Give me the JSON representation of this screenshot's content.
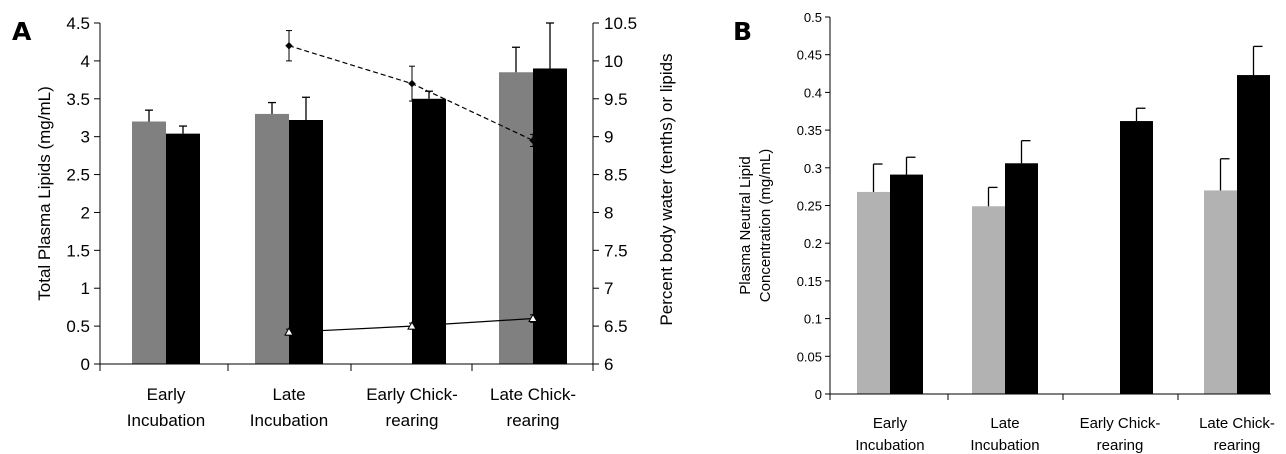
{
  "panel_labels": [
    "A",
    "B"
  ],
  "chart_data": [
    {
      "type": "bar",
      "panel": "A",
      "ylabel": "Total Plasma Lipids (mg/mL)",
      "y2label": "Percent body water (tenths) or lipids",
      "ylim": [
        0,
        4.5
      ],
      "y2lim": [
        6,
        10.5
      ],
      "yticks": [
        "0",
        "0.5",
        "1",
        "1.5",
        "2",
        "2.5",
        "3",
        "3.5",
        "4",
        "4.5"
      ],
      "y2ticks": [
        "6",
        "6.5",
        "7",
        "7.5",
        "8",
        "8.5",
        "9",
        "9.5",
        "10",
        "10.5"
      ],
      "categories": [
        [
          "Early",
          "Incubation"
        ],
        [
          "Late",
          "Incubation"
        ],
        [
          "Early Chick-",
          "rearing"
        ],
        [
          "Late Chick-",
          "rearing"
        ]
      ],
      "colors": {
        "grey": "#808080",
        "black": "#000000"
      },
      "series": [
        {
          "color": "grey",
          "values": [
            3.2,
            3.3,
            null,
            3.85
          ],
          "errors": [
            0.15,
            0.15,
            null,
            0.33
          ]
        },
        {
          "color": "black",
          "values": [
            3.04,
            3.22,
            3.5,
            3.9
          ],
          "errors": [
            0.1,
            0.3,
            0.1,
            0.6
          ]
        }
      ],
      "lines": [
        {
          "axis": "secondary",
          "style": "dashed",
          "marker": "diamond",
          "x_categories": [
            1,
            2,
            3
          ],
          "values": [
            10.2,
            9.7,
            8.95
          ],
          "errors": [
            0.2,
            0.23,
            0.08
          ]
        },
        {
          "axis": "secondary",
          "style": "solid",
          "marker": "triangle",
          "x_categories": [
            1,
            2,
            3
          ],
          "values": [
            6.42,
            6.5,
            6.6
          ],
          "errors": [
            0.04,
            0.04,
            0.05
          ]
        }
      ],
      "grid": false
    },
    {
      "type": "bar",
      "panel": "B",
      "ylabel": "Plasma Neutral Lipid Concentration (mg/mL)",
      "ylabel_lines": [
        "Plasma Neutral Lipid",
        "Concentration (mg/mL)"
      ],
      "ylim": [
        0,
        0.5
      ],
      "yticks": [
        "0",
        "0.05",
        "0.1",
        "0.15",
        "0.2",
        "0.25",
        "0.3",
        "0.35",
        "0.4",
        "0.45",
        "0.5"
      ],
      "categories": [
        [
          "Early",
          "Incubation"
        ],
        [
          "Late",
          "Incubation"
        ],
        [
          "Early Chick-",
          "rearing"
        ],
        [
          "Late Chick-",
          "rearing"
        ]
      ],
      "colors": {
        "grey": "#b2b2b2",
        "black": "#000000"
      },
      "series": [
        {
          "color": "grey",
          "values": [
            0.268,
            0.249,
            null,
            0.27
          ],
          "errors": [
            0.037,
            0.025,
            null,
            0.042
          ]
        },
        {
          "color": "black",
          "values": [
            0.291,
            0.306,
            0.362,
            0.423
          ],
          "errors": [
            0.023,
            0.03,
            0.017,
            0.038
          ]
        }
      ],
      "grid": false
    }
  ]
}
